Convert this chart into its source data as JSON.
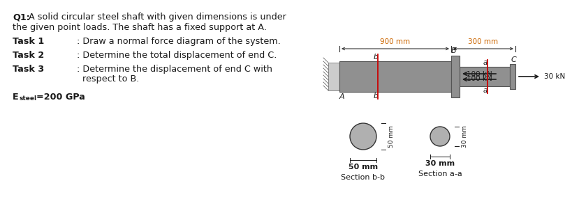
{
  "bg_color": "#ffffff",
  "dark": "#1a1a1a",
  "shaft_color": "#909090",
  "shaft_edge": "#555555",
  "wall_color": "#aaaaaa",
  "red": "#cc0000",
  "orange": "#cc6600",
  "title_bold": "Q1:",
  "title_rest": " A solid circular steel shaft with given dimensions is under\nthe given point loads. The shaft has a fixed support at A.",
  "task1_label": "Task 1",
  "task1_desc": ": Draw a normal force diagram of the system.",
  "task2_label": "Task 2",
  "task2_desc": ": Determine the total displacement of end C.",
  "task3_label": "Task 3",
  "task3_desc1": ": Determine the displacement of end C with",
  "task3_desc2": "  respect to B.",
  "esteel_label": "E",
  "esteel_sub": "steel",
  "esteel_val": "=200 GPa",
  "dim1": "900 mm",
  "dim2": "300 mm",
  "force_100_top": "100 kN",
  "force_100_bot": "100 kN",
  "force_30": "30 kN",
  "lbl_A": "A",
  "lbl_B": "B",
  "lbl_C": "C",
  "lbl_b": "b",
  "lbl_a": "a",
  "sec_bb": "Section b-b",
  "sec_aa": "Section a-a",
  "dim_50h": "50 mm",
  "dim_30h": "30 mm",
  "dim_50v": "50 mm",
  "dim_30v": "30 mm",
  "circle_bb_color": "#b0b0b0",
  "circle_aa_color": "#b0b0b0"
}
